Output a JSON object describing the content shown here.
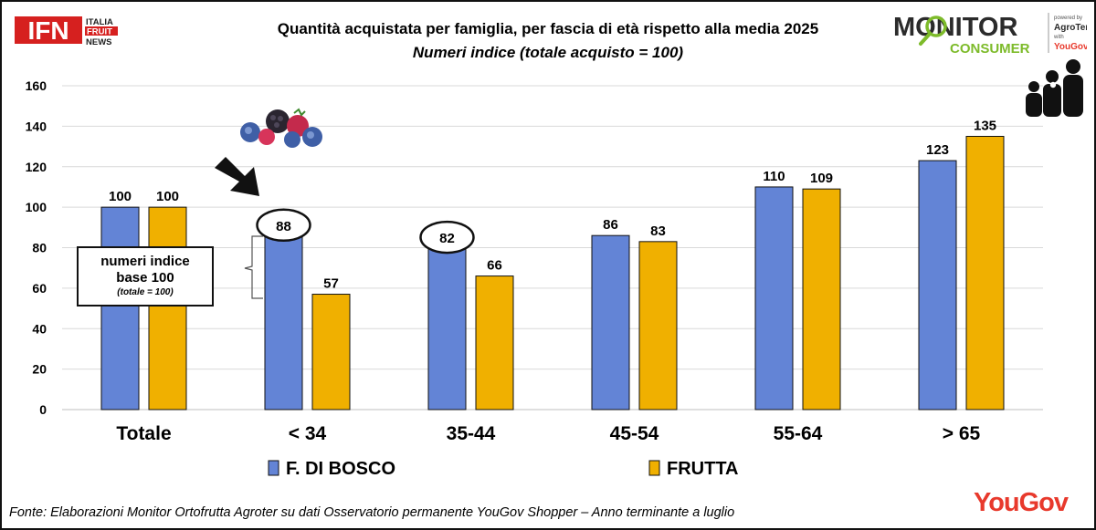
{
  "logo_ifn": {
    "mark": "IFN",
    "sub1": "ITALIA",
    "sub2": "FRUIT",
    "sub3": "NEWS"
  },
  "logo_monitor": {
    "word1": "MONITOR",
    "word2": "CONSUMER",
    "powered": "powered by",
    "agroter": "AgroTer",
    "with": "with",
    "yougov_small": "YouGov"
  },
  "title": "Quantità acquistata per famiglia, per fascia di età rispetto alla media 2025",
  "subtitle": "Numeri indice (totale acquisto = 100)",
  "annotation": {
    "line1": "numeri indice",
    "line2": "base 100",
    "line3": "(totale = 100)"
  },
  "source": "Fonte: Elaborazioni Monitor Ortofrutta Agroter su dati Osservatorio permanente YouGov Shopper – Anno terminante a luglio",
  "yougov_brand": "YouGov",
  "colors": {
    "series1": "#6384d6",
    "series2": "#f0b000"
  },
  "icons": [
    "berries-icon",
    "arrow-icon",
    "family-icon",
    "magnifier-icon"
  ],
  "chart_data": {
    "type": "bar",
    "categories": [
      "Totale",
      "< 34",
      "35-44",
      "45-54",
      "55-64",
      "> 65"
    ],
    "series": [
      {
        "name": "F. DI BOSCO",
        "values": [
          100,
          88,
          82,
          86,
          110,
          123
        ]
      },
      {
        "name": "FRUTTA",
        "values": [
          100,
          57,
          66,
          83,
          109,
          135
        ]
      }
    ],
    "title": "Quantità acquistata per famiglia, per fascia di età rispetto alla media 2025",
    "subtitle": "Numeri indice (totale acquisto = 100)",
    "ylim": [
      0,
      160
    ],
    "yticks": [
      0,
      20,
      40,
      60,
      80,
      100,
      120,
      140,
      160
    ],
    "grid": true,
    "legend": "bottom",
    "highlighted": [
      {
        "series": 0,
        "category": 1
      },
      {
        "series": 0,
        "category": 2
      }
    ]
  }
}
